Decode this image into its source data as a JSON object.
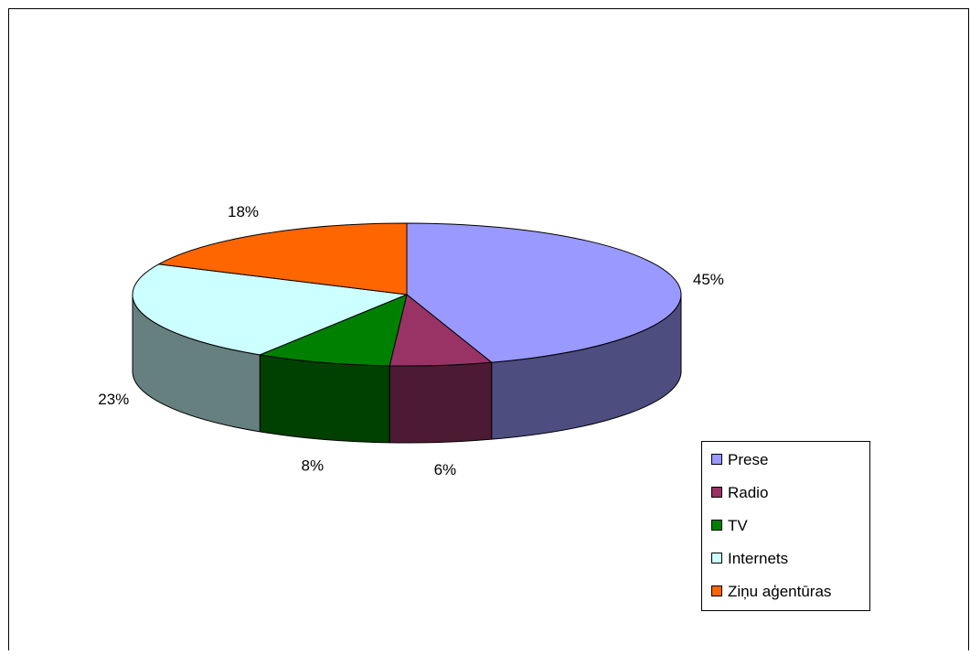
{
  "chart_data": {
    "type": "pie",
    "style": "3d-exploded-perspective",
    "title": "",
    "categories": [
      "Prese",
      "Radio",
      "TV",
      "Internets",
      "Ziņu aģentūras"
    ],
    "values": [
      45,
      6,
      8,
      23,
      18
    ],
    "value_labels": [
      "45%",
      "6%",
      "8%",
      "23%",
      "18%"
    ],
    "colors": [
      "#9999ff",
      "#993366",
      "#008000",
      "#ccffff",
      "#ff6600"
    ],
    "side_colors": [
      "#4d4d80",
      "#4d1a33",
      "#004000",
      "#668080",
      "#803300"
    ],
    "start_angle_deg": 270,
    "direction": "clockwise",
    "legend": {
      "position": "bottom-right",
      "items": [
        "Prese",
        "Radio",
        "TV",
        "Internets",
        "Ziņu aģentūras"
      ]
    }
  }
}
